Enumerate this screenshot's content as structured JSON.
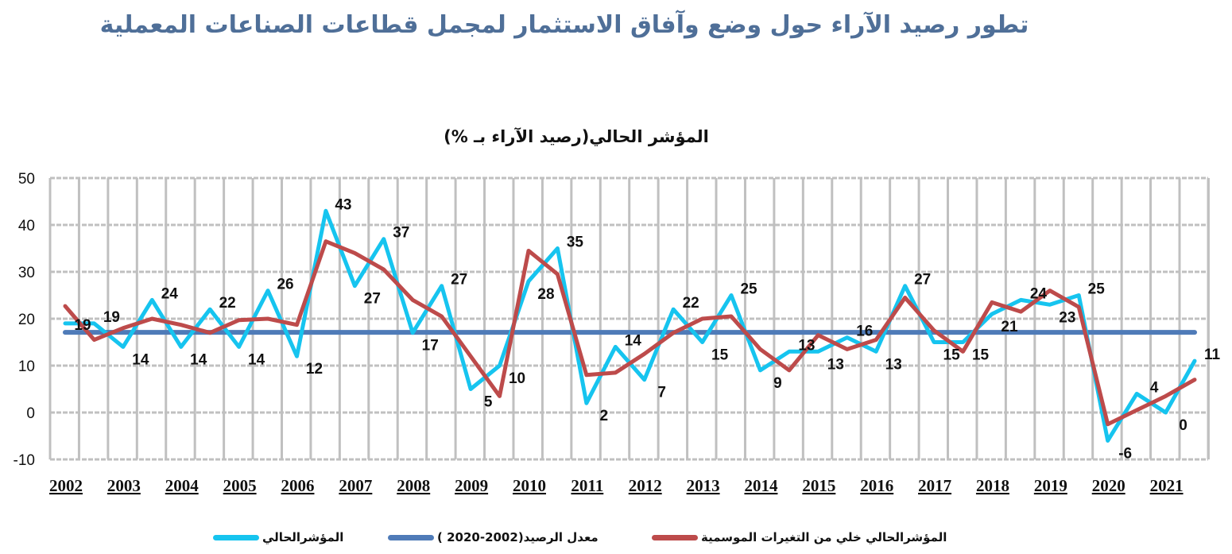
{
  "title": "تطور رصيد الآراء حول وضع وآفاق الاستثمار لمجمل قطاعات الصناعات المعملية",
  "chart_data": {
    "type": "line",
    "title": "المؤشر الحالي(رصيد الآراء بـ %)",
    "xlabel": "",
    "ylabel": "",
    "ylim": [
      -10,
      50
    ],
    "yticks": [
      -10,
      0,
      10,
      20,
      30,
      40,
      50
    ],
    "grid": true,
    "legend_placement": "bottom",
    "year_labels": [
      "2002",
      "2003",
      "2004",
      "2005",
      "2006",
      "2007",
      "2008",
      "2009",
      "2010",
      "2011",
      "2012",
      "2013",
      "2014",
      "2015",
      "2016",
      "2017",
      "2018",
      "2019",
      "2020",
      "2021"
    ],
    "points_per_year": 2,
    "series": [
      {
        "name": "المؤشرالحالي",
        "color": "#16c4ef",
        "values": [
          19,
          19,
          14,
          24,
          14,
          22,
          14,
          26,
          12,
          43,
          27,
          37,
          17,
          27,
          5,
          10,
          28,
          35,
          2,
          14,
          7,
          22,
          15,
          25,
          9,
          13,
          13,
          16,
          13,
          27,
          15,
          15,
          21,
          24,
          23,
          25,
          -6,
          4,
          0,
          11
        ],
        "data_labels": true
      },
      {
        "name": "معدل الرصيد(2002-2020 )",
        "color": "#4f7bb8",
        "values": [
          17.1,
          17.1,
          17.1,
          17.1,
          17.1,
          17.1,
          17.1,
          17.1,
          17.1,
          17.1,
          17.1,
          17.1,
          17.1,
          17.1,
          17.1,
          17.1,
          17.1,
          17.1,
          17.1,
          17.1,
          17.1,
          17.1,
          17.1,
          17.1,
          17.1,
          17.1,
          17.1,
          17.1,
          17.1,
          17.1,
          17.1,
          17.1,
          17.1,
          17.1,
          17.1,
          17.1,
          17.1,
          17.1,
          17.1,
          17.1
        ]
      },
      {
        "name": "المؤشرالحالي خلي من التغيرات الموسمية",
        "color": "#bd4b4b",
        "values": [
          22.7,
          15.5,
          18,
          20,
          18.7,
          17,
          19.7,
          20,
          18.7,
          36.5,
          34,
          30.5,
          24,
          20.5,
          12,
          3.5,
          34.5,
          29.5,
          8,
          8.5,
          12.5,
          17,
          20,
          20.5,
          13.5,
          9,
          16.5,
          13.5,
          15.5,
          24.5,
          17.5,
          13,
          23.5,
          21.5,
          26,
          22.5,
          -2.5,
          0.5,
          3.5,
          7
        ]
      }
    ]
  }
}
